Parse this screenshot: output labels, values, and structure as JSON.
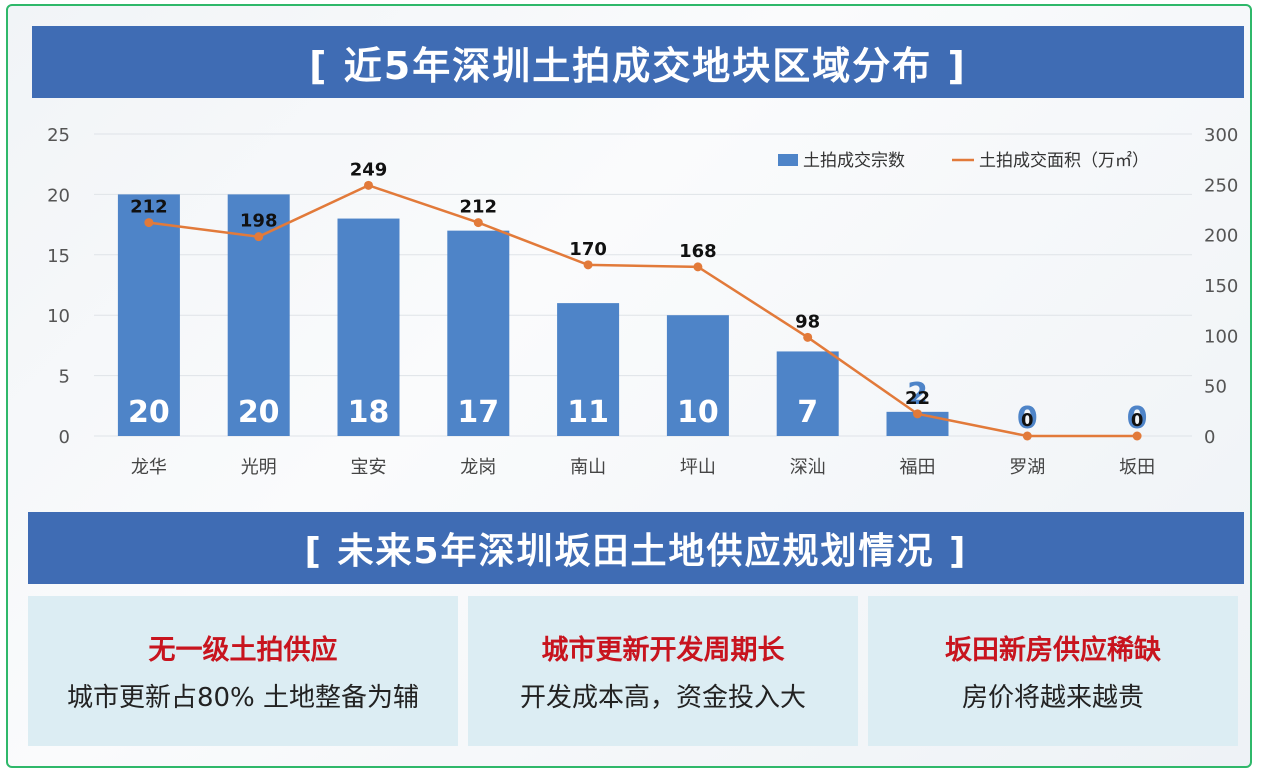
{
  "title_top": "[ 近5年深圳土拍成交地块区域分布 ]",
  "title_mid": "[ 未来5年深圳坂田土地供应规划情况 ]",
  "cards": [
    {
      "title": "无一级土拍供应",
      "text": "城市更新占80% 土地整备为辅"
    },
    {
      "title": "城市更新开发周期长",
      "text": "开发成本高，资金投入大"
    },
    {
      "title": "坂田新房供应稀缺",
      "text": "房价将越来越贵"
    }
  ],
  "colors": {
    "bar": "#4e84c8",
    "line": "#e27a3a",
    "banner": "#3f6cb4",
    "card_title": "#c8141e"
  },
  "chart_data": {
    "type": "bar",
    "categories": [
      "龙华",
      "光明",
      "宝安",
      "龙岗",
      "南山",
      "坪山",
      "深汕",
      "福田",
      "罗湖",
      "坂田"
    ],
    "series": [
      {
        "name": "土拍成交宗数",
        "type": "bar",
        "axis": "left",
        "values": [
          20,
          20,
          18,
          17,
          11,
          10,
          7,
          2,
          0,
          0
        ]
      },
      {
        "name": "土拍成交面积（万㎡）",
        "type": "line",
        "axis": "right",
        "values": [
          212,
          198,
          249,
          212,
          170,
          168,
          98,
          22,
          0,
          0
        ]
      }
    ],
    "ylim_left": [
      0,
      25
    ],
    "yticks_left": [
      0,
      5,
      10,
      15,
      20,
      25
    ],
    "ylim_right": [
      0,
      300
    ],
    "yticks_right": [
      0,
      50,
      100,
      150,
      200,
      250,
      300
    ],
    "grid": true,
    "legend": "top-right"
  }
}
